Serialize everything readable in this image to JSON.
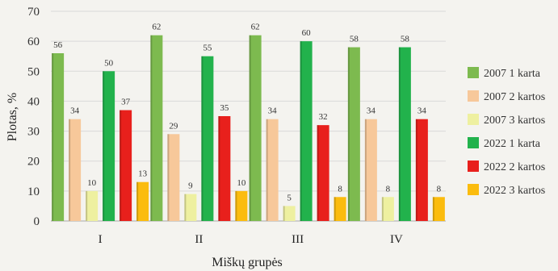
{
  "chart_data": {
    "type": "bar",
    "title": "",
    "xlabel": "Miškų grupės",
    "ylabel": "Plotas, %",
    "ylim": [
      0,
      70
    ],
    "yticks": [
      0,
      10,
      20,
      30,
      40,
      50,
      60,
      70
    ],
    "grid": true,
    "legend_position": "right",
    "categories": [
      "I",
      "II",
      "III",
      "IV"
    ],
    "series": [
      {
        "name": "2007 1 karta",
        "color": "#7dba4f",
        "values": [
          56,
          62,
          62,
          58
        ]
      },
      {
        "name": "2007 2 kartos",
        "color": "#f7c89a",
        "values": [
          34,
          29,
          34,
          34
        ]
      },
      {
        "name": "2007 3 kartos",
        "color": "#eef0a0",
        "values": [
          10,
          9,
          5,
          8
        ]
      },
      {
        "name": "2022 1 karta",
        "color": "#22b24c",
        "values": [
          50,
          55,
          60,
          58
        ]
      },
      {
        "name": "2022 2 kartos",
        "color": "#e8201c",
        "values": [
          37,
          35,
          32,
          34
        ]
      },
      {
        "name": "2022 3 kartos",
        "color": "#fbbc0e",
        "values": [
          13,
          10,
          8,
          8
        ]
      }
    ]
  }
}
